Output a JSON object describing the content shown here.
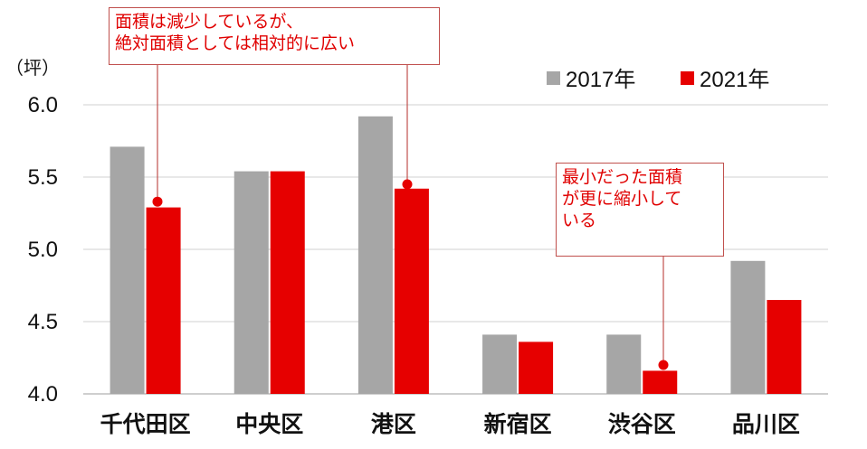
{
  "chart_data": {
    "type": "bar",
    "unit_label": "（坪）",
    "categories": [
      "千代田区",
      "中央区",
      "港区",
      "新宿区",
      "渋谷区",
      "品川区"
    ],
    "series": [
      {
        "name": "2017年",
        "color": "#a6a6a6",
        "values": [
          5.71,
          5.54,
          5.92,
          4.41,
          4.41,
          4.92
        ]
      },
      {
        "name": "2021年",
        "color": "#e60000",
        "values": [
          5.29,
          5.54,
          5.42,
          4.36,
          4.16,
          4.65
        ]
      }
    ],
    "ylim": [
      4.0,
      6.0
    ],
    "yticks": [
      "4.0",
      "4.5",
      "5.0",
      "5.5",
      "6.0"
    ],
    "grid": true,
    "legend_position": "top-right",
    "annotations": [
      {
        "text": "面積は減少しているが、\n絶対面積としては相対的に広い",
        "category_index": 0,
        "series_index": 1,
        "value": 5.33
      },
      {
        "text": "最小だった面積\nが更に縮小して\nいる",
        "category_index": 4,
        "series_index": 1,
        "value": 4.2
      },
      {
        "text": "",
        "category_index": 2,
        "series_index": 1,
        "value": 5.45
      }
    ]
  }
}
